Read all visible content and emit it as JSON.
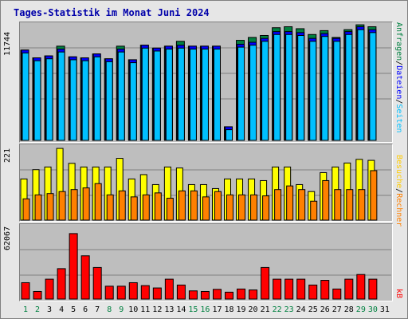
{
  "title": "Tages-Statistik im Monat Juni 2024",
  "colors": {
    "anfragen": "#008040",
    "dateien": "#0000ff",
    "seiten": "#00c0ff",
    "besuche": "#ffff00",
    "rechner": "#ff8000",
    "kb": "#ff0000",
    "weekend": "#008040",
    "weekday": "#000000"
  },
  "legend_top": {
    "anfragen": "Anfragen",
    "sep1": "/",
    "dateien": "Dateien",
    "sep2": "/",
    "seiten": "Seiten"
  },
  "legend_mid": {
    "besuche": "Besuche",
    "sep1": "/",
    "rechner": "Rechner"
  },
  "legend_bottom": {
    "kb": "kB"
  },
  "chart_data": [
    {
      "type": "bar",
      "title": "Tages-Statistik im Monat Juni 2024",
      "ymax_label": "11744",
      "ylim": [
        0,
        11744
      ],
      "categories": [
        "1",
        "2",
        "3",
        "4",
        "5",
        "6",
        "7",
        "8",
        "9",
        "10",
        "11",
        "12",
        "13",
        "14",
        "15",
        "16",
        "17",
        "18",
        "19",
        "20",
        "21",
        "22",
        "23",
        "24",
        "25",
        "26",
        "27",
        "28",
        "29",
        "30",
        "31"
      ],
      "series": [
        {
          "name": "Anfragen",
          "values": [
            9300,
            8500,
            8700,
            9700,
            8600,
            8500,
            8900,
            8400,
            9700,
            8300,
            9800,
            9500,
            9700,
            10200,
            9700,
            9700,
            9700,
            1400,
            10300,
            10600,
            10800,
            11600,
            11700,
            11500,
            10900,
            11300,
            10600,
            11400,
            11900,
            11700,
            0
          ]
        },
        {
          "name": "Dateien",
          "values": [
            9300,
            8500,
            8700,
            9400,
            8600,
            8500,
            8900,
            8400,
            9400,
            8300,
            9800,
            9500,
            9700,
            9800,
            9700,
            9700,
            9700,
            1400,
            9900,
            10100,
            10500,
            11200,
            11200,
            11100,
            10500,
            11000,
            10500,
            11200,
            11700,
            11400,
            0
          ]
        },
        {
          "name": "Seiten",
          "values": [
            9000,
            8200,
            8400,
            9100,
            8300,
            8200,
            8600,
            8100,
            9100,
            8000,
            9500,
            9200,
            9400,
            9500,
            9400,
            9400,
            9400,
            1100,
            9600,
            9800,
            10200,
            10900,
            10900,
            10800,
            10200,
            10700,
            10200,
            10900,
            11400,
            11100,
            0
          ]
        }
      ]
    },
    {
      "type": "bar",
      "ymax_label": "221",
      "ylim": [
        0,
        221
      ],
      "categories": [
        "1",
        "2",
        "3",
        "4",
        "5",
        "6",
        "7",
        "8",
        "9",
        "10",
        "11",
        "12",
        "13",
        "14",
        "15",
        "16",
        "17",
        "18",
        "19",
        "20",
        "21",
        "22",
        "23",
        "24",
        "25",
        "26",
        "27",
        "28",
        "29",
        "30",
        "31"
      ],
      "series": [
        {
          "name": "Besuche",
          "values": [
            124,
            152,
            160,
            216,
            171,
            160,
            160,
            160,
            186,
            124,
            137,
            107,
            160,
            157,
            107,
            107,
            95,
            124,
            124,
            124,
            119,
            160,
            160,
            107,
            86,
            143,
            160,
            172,
            183,
            180,
            0
          ]
        },
        {
          "name": "Rechner",
          "values": [
            64,
            76,
            80,
            86,
            92,
            97,
            110,
            76,
            88,
            70,
            76,
            82,
            66,
            88,
            88,
            70,
            86,
            76,
            76,
            76,
            73,
            92,
            103,
            92,
            57,
            119,
            92,
            92,
            92,
            149,
            0
          ]
        }
      ]
    },
    {
      "type": "bar",
      "ymax_label": "62067",
      "ylim": [
        0,
        62067
      ],
      "categories": [
        "1",
        "2",
        "3",
        "4",
        "5",
        "6",
        "7",
        "8",
        "9",
        "10",
        "11",
        "12",
        "13",
        "14",
        "15",
        "16",
        "17",
        "18",
        "19",
        "20",
        "21",
        "22",
        "23",
        "24",
        "25",
        "26",
        "27",
        "28",
        "29",
        "30",
        "31"
      ],
      "series": [
        {
          "name": "kB",
          "values": [
            14000,
            6500,
            17000,
            26000,
            56000,
            37000,
            27000,
            11000,
            11000,
            14000,
            11500,
            9500,
            17000,
            12000,
            7000,
            6500,
            8300,
            5900,
            8600,
            7800,
            27000,
            17000,
            17000,
            17000,
            12000,
            16000,
            8600,
            17000,
            21000,
            17000,
            0
          ]
        }
      ]
    }
  ],
  "day_labels": [
    {
      "text": "1",
      "weekend": true
    },
    {
      "text": "2",
      "weekend": true
    },
    {
      "text": "3",
      "weekend": false
    },
    {
      "text": "4",
      "weekend": false
    },
    {
      "text": "5",
      "weekend": false
    },
    {
      "text": "6",
      "weekend": false
    },
    {
      "text": "7",
      "weekend": false
    },
    {
      "text": "8",
      "weekend": true
    },
    {
      "text": "9",
      "weekend": true
    },
    {
      "text": "10",
      "weekend": false
    },
    {
      "text": "11",
      "weekend": false
    },
    {
      "text": "12",
      "weekend": false
    },
    {
      "text": "13",
      "weekend": false
    },
    {
      "text": "14",
      "weekend": false
    },
    {
      "text": "15",
      "weekend": true
    },
    {
      "text": "16",
      "weekend": true
    },
    {
      "text": "17",
      "weekend": false
    },
    {
      "text": "18",
      "weekend": false
    },
    {
      "text": "19",
      "weekend": false
    },
    {
      "text": "20",
      "weekend": false
    },
    {
      "text": "21",
      "weekend": false
    },
    {
      "text": "22",
      "weekend": true
    },
    {
      "text": "23",
      "weekend": true
    },
    {
      "text": "24",
      "weekend": false
    },
    {
      "text": "25",
      "weekend": false
    },
    {
      "text": "26",
      "weekend": false
    },
    {
      "text": "27",
      "weekend": false
    },
    {
      "text": "28",
      "weekend": false
    },
    {
      "text": "29",
      "weekend": true
    },
    {
      "text": "30",
      "weekend": true
    },
    {
      "text": "31",
      "weekend": false
    }
  ]
}
